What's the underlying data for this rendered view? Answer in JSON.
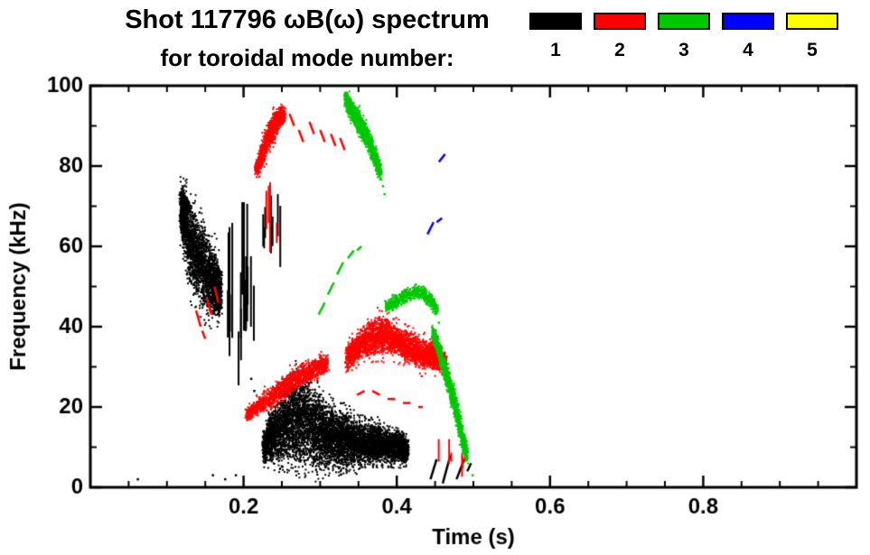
{
  "header": {
    "title": "Shot 117796 ωB(ω) spectrum",
    "subtitle": "for toroidal mode number:"
  },
  "chart_data": {
    "type": "scatter",
    "title": "Shot 117796 ωB(ω) spectrum",
    "subtitle": "for toroidal mode number:",
    "xlabel": "Time (s)",
    "ylabel": "Frequency (kHz)",
    "xlim": [
      0.0,
      1.0
    ],
    "ylim": [
      0,
      100
    ],
    "grid": false,
    "legend_position": "top-right",
    "x_major_ticks": {
      "values": [
        0.2,
        0.4,
        0.6,
        0.8
      ],
      "labels": [
        "0.2",
        "0.4",
        "0.6",
        "0.8"
      ]
    },
    "x_minor_step": 0.05,
    "y_major_ticks": {
      "values": [
        0,
        20,
        40,
        60,
        80,
        100
      ],
      "labels": [
        "0",
        "20",
        "40",
        "60",
        "80",
        "100"
      ]
    },
    "y_minor_step": 10,
    "legend": [
      {
        "label": "1",
        "color": "#000000"
      },
      {
        "label": "2",
        "color": "#ff0000"
      },
      {
        "label": "3",
        "color": "#00c800"
      },
      {
        "label": "4",
        "color": "#0000ff"
      },
      {
        "label": "5",
        "color": "#ffff00"
      }
    ],
    "series": [
      {
        "name": "n=1",
        "color": "#000000",
        "clusters": [
          {
            "kind": "band",
            "n": 2600,
            "size": 2,
            "spike": 0.1,
            "spikeScale": 1.4,
            "pts": [
              [
                0.118,
                69,
                6
              ],
              [
                0.124,
                66,
                8
              ],
              [
                0.13,
                61,
                10
              ],
              [
                0.137,
                58,
                11
              ],
              [
                0.144,
                56,
                11
              ],
              [
                0.151,
                54,
                10
              ],
              [
                0.158,
                52,
                9
              ],
              [
                0.165,
                50,
                8
              ],
              [
                0.171,
                48,
                6
              ]
            ]
          },
          {
            "kind": "band",
            "n": 220,
            "size": 2,
            "spike": 0,
            "spikeScale": 1,
            "pts": [
              [
                0.118,
                73,
                2
              ],
              [
                0.124,
                71,
                2
              ],
              [
                0.13,
                69,
                2
              ]
            ]
          },
          {
            "kind": "vstreaks",
            "n": 16,
            "w": 2,
            "t0": 0.178,
            "t1": 0.214,
            "f0": 25,
            "f1": 71
          },
          {
            "kind": "vstreaks",
            "n": 7,
            "w": 2,
            "t0": 0.224,
            "t1": 0.25,
            "f0": 53,
            "f1": 73
          },
          {
            "kind": "band",
            "n": 7000,
            "size": 2,
            "spike": 0.12,
            "spikeScale": 1.3,
            "pts": [
              [
                0.226,
                10,
                4
              ],
              [
                0.238,
                13,
                7
              ],
              [
                0.25,
                15,
                9
              ],
              [
                0.262,
                17,
                11
              ],
              [
                0.274,
                17,
                12
              ],
              [
                0.286,
                16,
                11
              ],
              [
                0.298,
                14,
                10
              ],
              [
                0.31,
                13,
                8
              ],
              [
                0.322,
                12,
                7
              ],
              [
                0.334,
                12,
                7
              ],
              [
                0.348,
                11,
                6
              ],
              [
                0.362,
                11,
                5
              ],
              [
                0.376,
                11,
                5
              ],
              [
                0.39,
                10,
                4
              ],
              [
                0.403,
                10,
                4
              ],
              [
                0.414,
                9,
                3
              ]
            ]
          },
          {
            "kind": "strokes",
            "lw": 2.5,
            "segs": [
              [
                0.444,
                2,
                0.452,
                7
              ],
              [
                0.46,
                1,
                0.47,
                8
              ],
              [
                0.478,
                2,
                0.488,
                7
              ],
              [
                0.492,
                4,
                0.497,
                6
              ]
            ]
          },
          {
            "kind": "dots",
            "size": 2.5,
            "pts": [
              [
                0.062,
                2
              ],
              [
                0.16,
                3
              ],
              [
                0.176,
                2
              ],
              [
                0.19,
                3
              ],
              [
                0.21,
                27
              ],
              [
                0.214,
                24
              ]
            ]
          }
        ]
      },
      {
        "name": "n=2",
        "color": "#ff0000",
        "clusters": [
          {
            "kind": "strokes",
            "lw": 2.5,
            "segs": [
              [
                0.138,
                44,
                0.144,
                40
              ],
              [
                0.152,
                47,
                0.158,
                43
              ],
              [
                0.162,
                50,
                0.167,
                46
              ],
              [
                0.146,
                39,
                0.15,
                37
              ]
            ]
          },
          {
            "kind": "band",
            "n": 1100,
            "size": 2,
            "spike": 0.05,
            "spikeScale": 1.4,
            "pts": [
              [
                0.216,
                79,
                2
              ],
              [
                0.222,
                82,
                3
              ],
              [
                0.228,
                85,
                4
              ],
              [
                0.234,
                88,
                4
              ],
              [
                0.24,
                90,
                4
              ],
              [
                0.247,
                92,
                3
              ],
              [
                0.253,
                93,
                2
              ]
            ]
          },
          {
            "kind": "strokes",
            "lw": 2.5,
            "segs": [
              [
                0.26,
                93,
                0.266,
                90
              ],
              [
                0.272,
                89,
                0.278,
                86
              ],
              [
                0.286,
                91,
                0.292,
                88
              ],
              [
                0.3,
                89,
                0.306,
                86
              ],
              [
                0.314,
                88,
                0.32,
                85
              ],
              [
                0.326,
                87,
                0.332,
                84
              ]
            ]
          },
          {
            "kind": "vstreaks",
            "n": 5,
            "w": 2,
            "t0": 0.228,
            "t1": 0.244,
            "f0": 58,
            "f1": 76
          },
          {
            "kind": "band",
            "n": 1400,
            "size": 2,
            "spike": 0.05,
            "spikeScale": 1.4,
            "pts": [
              [
                0.204,
                18,
                2
              ],
              [
                0.218,
                20,
                2
              ],
              [
                0.232,
                22,
                3
              ],
              [
                0.246,
                24,
                3
              ],
              [
                0.26,
                26,
                3
              ],
              [
                0.274,
                28,
                3
              ],
              [
                0.288,
                29,
                3
              ],
              [
                0.3,
                30,
                3
              ],
              [
                0.31,
                31,
                2
              ]
            ]
          },
          {
            "kind": "band",
            "n": 3200,
            "size": 2,
            "spike": 0.06,
            "spikeScale": 1.4,
            "pts": [
              [
                0.334,
                32,
                3
              ],
              [
                0.344,
                34,
                4
              ],
              [
                0.354,
                36,
                4
              ],
              [
                0.364,
                37,
                5
              ],
              [
                0.374,
                38,
                5
              ],
              [
                0.384,
                38,
                5
              ],
              [
                0.394,
                37,
                4
              ],
              [
                0.404,
                36,
                4
              ],
              [
                0.414,
                35,
                4
              ],
              [
                0.424,
                34,
                4
              ],
              [
                0.434,
                33,
                4
              ],
              [
                0.444,
                33,
                4
              ],
              [
                0.454,
                32,
                3
              ],
              [
                0.464,
                31,
                3
              ]
            ]
          },
          {
            "kind": "strokes",
            "lw": 2.5,
            "segs": [
              [
                0.348,
                23,
                0.358,
                24
              ],
              [
                0.368,
                24,
                0.378,
                23
              ],
              [
                0.388,
                22,
                0.398,
                22
              ],
              [
                0.408,
                21,
                0.418,
                21
              ],
              [
                0.428,
                20,
                0.434,
                20
              ]
            ]
          },
          {
            "kind": "vstreaks",
            "n": 6,
            "w": 2,
            "t0": 0.448,
            "t1": 0.492,
            "f0": 2,
            "f1": 12
          }
        ]
      },
      {
        "name": "n=3",
        "color": "#00c800",
        "clusters": [
          {
            "kind": "band",
            "n": 1400,
            "size": 2,
            "spike": 0.06,
            "spikeScale": 1.4,
            "pts": [
              [
                0.333,
                97,
                2
              ],
              [
                0.338,
                95,
                3
              ],
              [
                0.344,
                93,
                3
              ],
              [
                0.35,
                91,
                3
              ],
              [
                0.356,
                89,
                3
              ],
              [
                0.362,
                87,
                3
              ],
              [
                0.368,
                84,
                3
              ],
              [
                0.374,
                81,
                3
              ],
              [
                0.379,
                78,
                2
              ]
            ]
          },
          {
            "kind": "dots",
            "size": 2.5,
            "pts": [
              [
                0.382,
                75
              ],
              [
                0.384,
                73
              ]
            ]
          },
          {
            "kind": "strokes",
            "lw": 2.5,
            "segs": [
              [
                0.298,
                43,
                0.306,
                46
              ],
              [
                0.31,
                48,
                0.318,
                51
              ],
              [
                0.322,
                53,
                0.33,
                56
              ],
              [
                0.336,
                57,
                0.344,
                59
              ],
              [
                0.348,
                59,
                0.354,
                60
              ]
            ]
          },
          {
            "kind": "band",
            "n": 700,
            "size": 2,
            "spike": 0,
            "spikeScale": 1,
            "pts": [
              [
                0.386,
                45,
                1.5
              ],
              [
                0.396,
                46,
                2
              ],
              [
                0.406,
                47,
                2
              ],
              [
                0.416,
                48,
                2
              ],
              [
                0.426,
                49,
                2
              ],
              [
                0.436,
                48,
                2
              ],
              [
                0.446,
                46,
                2
              ],
              [
                0.453,
                44,
                1.5
              ]
            ]
          },
          {
            "kind": "band",
            "n": 1500,
            "size": 2,
            "spike": 0.08,
            "spikeScale": 1.4,
            "pts": [
              [
                0.447,
                39,
                2
              ],
              [
                0.454,
                35,
                2
              ],
              [
                0.461,
                30,
                3
              ],
              [
                0.468,
                26,
                3
              ],
              [
                0.474,
                22,
                3
              ],
              [
                0.48,
                17,
                3
              ],
              [
                0.486,
                12,
                3
              ],
              [
                0.492,
                8,
                2
              ]
            ]
          },
          {
            "kind": "dots",
            "size": 2.5,
            "pts": [
              [
                0.499,
                3
              ],
              [
                0.455,
                41
              ]
            ]
          }
        ]
      },
      {
        "name": "n=4",
        "color": "#0000ff",
        "clusters": [
          {
            "kind": "strokes",
            "lw": 2.5,
            "segs": [
              [
                0.44,
                63,
                0.448,
                66
              ],
              [
                0.452,
                66,
                0.459,
                67
              ],
              [
                0.455,
                81,
                0.463,
                83
              ]
            ]
          }
        ]
      },
      {
        "name": "n=5",
        "color": "#ffff00",
        "clusters": []
      }
    ]
  }
}
